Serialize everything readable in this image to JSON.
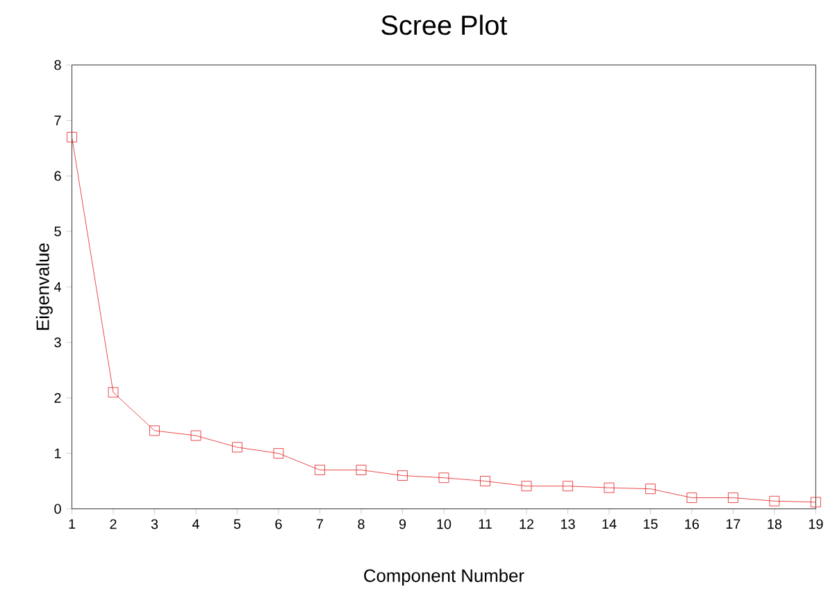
{
  "chart_data": {
    "type": "line",
    "title": "Scree Plot",
    "xlabel": "Component Number",
    "ylabel": "Eigenvalue",
    "x": [
      1,
      2,
      3,
      4,
      5,
      6,
      7,
      8,
      9,
      10,
      11,
      12,
      13,
      14,
      15,
      16,
      17,
      18,
      19
    ],
    "series": [
      {
        "color": "#e31a1c",
        "values": [
          6.7,
          2.1,
          1.41,
          1.32,
          1.11,
          1.0,
          0.7,
          0.7,
          0.6,
          0.56,
          0.5,
          0.41,
          0.41,
          0.38,
          0.36,
          0.2,
          0.2,
          0.14,
          0.12
        ]
      }
    ],
    "xlim": [
      1,
      19
    ],
    "xticks": [
      1,
      2,
      3,
      4,
      5,
      6,
      7,
      8,
      9,
      10,
      11,
      12,
      13,
      14,
      15,
      16,
      17,
      18,
      19
    ],
    "ylim": [
      0,
      8
    ],
    "yticks": [
      0,
      1,
      2,
      3,
      4,
      5,
      6,
      7,
      8
    ],
    "marker": "square",
    "line_style": "solid",
    "grid": false
  }
}
